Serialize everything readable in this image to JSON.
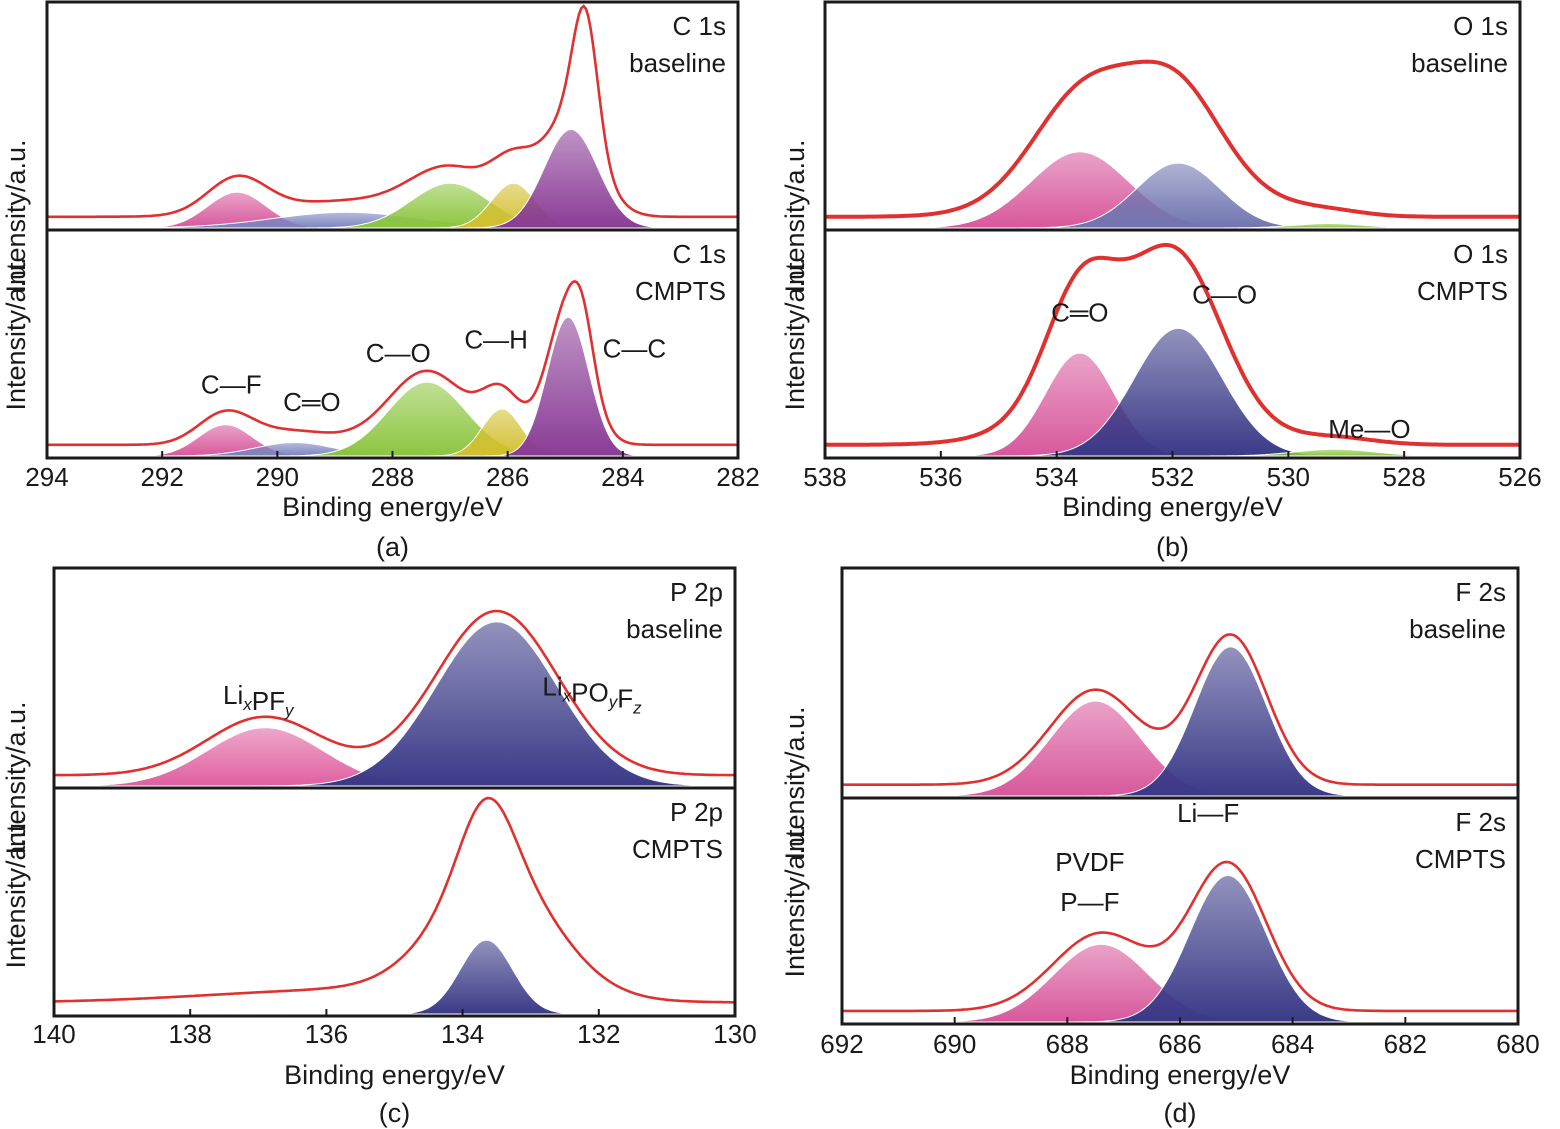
{
  "chart_data": [
    {
      "id": "a",
      "type": "area",
      "caption": "(a)",
      "xlabel": "Binding energy/eV",
      "ylabel": "Intensity/a.u.",
      "xlim": [
        294,
        282
      ],
      "xticks": [
        294,
        292,
        290,
        288,
        286,
        284,
        282
      ],
      "grid": false,
      "subplots": [
        {
          "title_lines": [
            "C 1s",
            "baseline"
          ],
          "envelope_color": "#e03030",
          "components": [
            {
              "center": 290.7,
              "fwhm": 1.2,
              "amp": 0.16,
              "color": "#d8589c"
            },
            {
              "center": 288.8,
              "fwhm": 3.0,
              "amp": 0.07,
              "color": "#7b84c0"
            },
            {
              "center": 287.0,
              "fwhm": 1.6,
              "amp": 0.2,
              "color": "#8cc63f"
            },
            {
              "center": 285.9,
              "fwhm": 0.9,
              "amp": 0.2,
              "color": "#d4c030"
            },
            {
              "center": 284.9,
              "fwhm": 1.1,
              "amp": 0.44,
              "color": "#8a3c96"
            }
          ],
          "extra_envelope": [
            {
              "center": 284.65,
              "fwhm": 0.5,
              "amp": 0.55
            }
          ],
          "annotations": []
        },
        {
          "title_lines": [
            "C 1s",
            "CMPTS"
          ],
          "envelope_color": "#e03030",
          "components": [
            {
              "center": 290.9,
              "fwhm": 1.1,
              "amp": 0.14,
              "color": "#d8589c"
            },
            {
              "center": 289.7,
              "fwhm": 1.6,
              "amp": 0.06,
              "color": "#7b84c0"
            },
            {
              "center": 287.4,
              "fwhm": 1.6,
              "amp": 0.33,
              "color": "#8cc63f"
            },
            {
              "center": 286.1,
              "fwhm": 0.8,
              "amp": 0.21,
              "color": "#d4c030"
            },
            {
              "center": 284.95,
              "fwhm": 0.85,
              "amp": 0.62,
              "color": "#8a3c96"
            }
          ],
          "extra_envelope": [
            {
              "center": 284.7,
              "fwhm": 0.45,
              "amp": 0.18
            }
          ],
          "annotations": [
            {
              "text": "C—F",
              "x": 290.8,
              "level": 0.28
            },
            {
              "text": "C═O",
              "x": 289.4,
              "level": 0.2
            },
            {
              "text": "C—O",
              "x": 287.9,
              "level": 0.42
            },
            {
              "text": "C—H",
              "x": 286.2,
              "level": 0.48
            },
            {
              "text": "C—C",
              "x": 283.8,
              "level": 0.44
            }
          ]
        }
      ]
    },
    {
      "id": "b",
      "type": "area",
      "caption": "(b)",
      "xlabel": "Binding energy/eV",
      "ylabel": "Intensity/a.u.",
      "xlim": [
        538,
        526
      ],
      "xticks": [
        538,
        536,
        534,
        532,
        530,
        528,
        526
      ],
      "grid": false,
      "subplots": [
        {
          "title_lines": [
            "O 1s",
            "baseline"
          ],
          "envelope_color": "#e03030",
          "components": [
            {
              "center": 533.6,
              "fwhm": 2.0,
              "amp": 0.34,
              "color": "#d8589c"
            },
            {
              "center": 531.9,
              "fwhm": 1.7,
              "amp": 0.29,
              "color": "#7075b0"
            },
            {
              "center": 529.3,
              "fwhm": 1.4,
              "amp": 0.02,
              "color": "#8cc63f"
            }
          ],
          "extra_envelope": [
            {
              "center": 532.5,
              "fwhm": 3.2,
              "amp": 0.34
            }
          ],
          "annotations": []
        },
        {
          "title_lines": [
            "O 1s",
            "CMPTS"
          ],
          "envelope_color": "#e03030",
          "components": [
            {
              "center": 533.6,
              "fwhm": 1.4,
              "amp": 0.46,
              "color": "#d8589c"
            },
            {
              "center": 531.9,
              "fwhm": 1.8,
              "amp": 0.57,
              "color": "#3a3a88"
            },
            {
              "center": 529.2,
              "fwhm": 1.6,
              "amp": 0.03,
              "color": "#8cc63f"
            }
          ],
          "extra_envelope": [
            {
              "center": 532.7,
              "fwhm": 3.0,
              "amp": 0.36
            }
          ],
          "annotations": [
            {
              "text": "C═O",
              "x": 533.6,
              "level": 0.6
            },
            {
              "text": "C—O",
              "x": 531.1,
              "level": 0.68
            },
            {
              "text": "Me—O",
              "x": 528.6,
              "level": 0.08
            }
          ]
        }
      ]
    },
    {
      "id": "c",
      "type": "area",
      "caption": "(c)",
      "xlabel": "Binding energy/eV",
      "ylabel": "Intensity/a.u.",
      "xlim": [
        140,
        130
      ],
      "xticks": [
        140,
        138,
        136,
        134,
        132,
        130
      ],
      "grid": false,
      "subplots": [
        {
          "title_lines": [
            "P 2p",
            "baseline"
          ],
          "envelope_color": "#e03030",
          "components": [
            {
              "center": 136.9,
              "fwhm": 2.0,
              "amp": 0.27,
              "color": "#e060a0"
            },
            {
              "center": 133.5,
              "fwhm": 2.1,
              "amp": 0.76,
              "color": "#3a3a88"
            }
          ],
          "extra_envelope": [],
          "annotations": [
            {
              "text": "LixPFy",
              "x": 137.0,
              "level": 0.38,
              "rich": "LiPF",
              "subs": [
                "x",
                "y"
              ]
            },
            {
              "text": "LixPOyFz",
              "x": 132.1,
              "level": 0.42,
              "rich": "LiPOF",
              "subs": [
                "x",
                "y",
                "z"
              ]
            }
          ]
        },
        {
          "title_lines": [
            "P 2p",
            "CMPTS"
          ],
          "envelope_color": "#e03030",
          "components": [
            {
              "center": 133.65,
              "fwhm": 0.9,
              "amp": 0.33,
              "color": "#3a3a88"
            }
          ],
          "extra_envelope": [
            {
              "center": 133.5,
              "fwhm": 2.0,
              "amp": 0.55
            },
            {
              "center": 135.5,
              "fwhm": 5.0,
              "amp": 0.06
            }
          ],
          "annotations": []
        }
      ]
    },
    {
      "id": "d",
      "type": "area",
      "caption": "(d)",
      "xlabel": "Binding energy/eV",
      "ylabel": "Intensity/a.u.",
      "xlim": [
        692,
        680
      ],
      "xticks": [
        692,
        690,
        688,
        686,
        684,
        682,
        680
      ],
      "grid": false,
      "subplots": [
        {
          "title_lines": [
            "F 2s",
            "baseline"
          ],
          "envelope_color": "#e03030",
          "components": [
            {
              "center": 687.5,
              "fwhm": 1.9,
              "amp": 0.42,
              "color": "#d8589c"
            },
            {
              "center": 685.1,
              "fwhm": 1.5,
              "amp": 0.66,
              "color": "#3a3a88"
            }
          ],
          "extra_envelope": [],
          "annotations": []
        },
        {
          "title_lines": [
            "F 2s",
            "CMPTS"
          ],
          "envelope_color": "#e03030",
          "components": [
            {
              "center": 687.4,
              "fwhm": 2.0,
              "amp": 0.35,
              "color": "#d8589c"
            },
            {
              "center": 685.15,
              "fwhm": 1.6,
              "amp": 0.66,
              "color": "#3a3a88"
            }
          ],
          "extra_envelope": [],
          "annotations": [
            {
              "text": "PVDF",
              "x": 687.6,
              "level": 0.68
            },
            {
              "text": "P—F",
              "x": 687.6,
              "level": 0.5
            },
            {
              "text": "Li—F",
              "x": 685.5,
              "level": 0.9
            }
          ]
        }
      ]
    }
  ]
}
